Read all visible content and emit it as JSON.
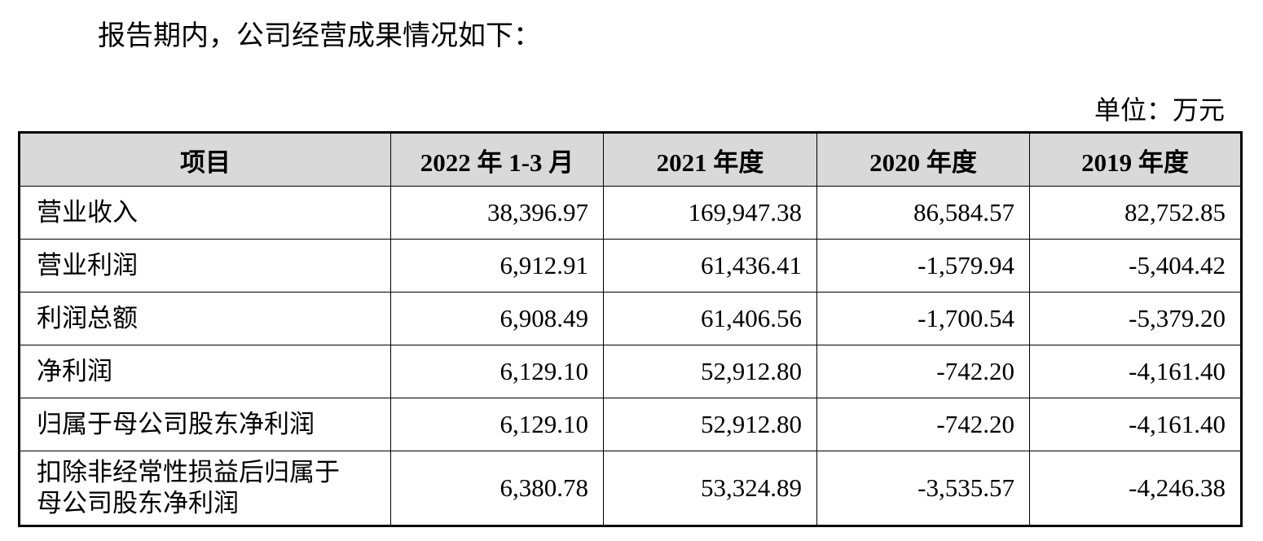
{
  "intro": "报告期内，公司经营成果情况如下：",
  "unit": "单位：万元",
  "table": {
    "header": [
      "项目",
      "2022 年 1-3 月",
      "2021 年度",
      "2020 年度",
      "2019 年度"
    ],
    "rows": [
      [
        "营业收入",
        "38,396.97",
        "169,947.38",
        "86,584.57",
        "82,752.85"
      ],
      [
        "营业利润",
        "6,912.91",
        "61,436.41",
        "-1,579.94",
        "-5,404.42"
      ],
      [
        "利润总额",
        "6,908.49",
        "61,406.56",
        "-1,700.54",
        "-5,379.20"
      ],
      [
        "净利润",
        "6,129.10",
        "52,912.80",
        "-742.20",
        "-4,161.40"
      ],
      [
        "归属于母公司股东净利润",
        "6,129.10",
        "52,912.80",
        "-742.20",
        "-4,161.40"
      ],
      [
        "扣除非经常性损益后归属于母公司股东净利润",
        "6,380.78",
        "53,324.89",
        "-3,535.57",
        "-4,246.38"
      ]
    ]
  }
}
